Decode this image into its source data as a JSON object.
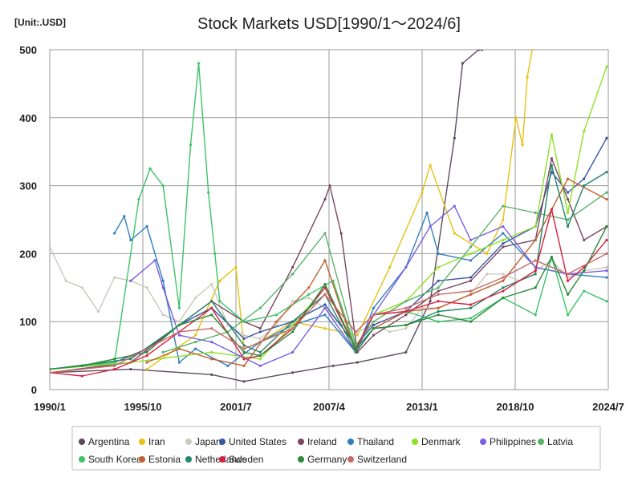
{
  "chart_data": {
    "type": "line",
    "title": "Stock Markets USD[1990/1～2024/6]",
    "unit_label": "[Unit:.USD]",
    "x_ticks": [
      "1990/1",
      "1995/10",
      "2001/7",
      "2007/4",
      "2013/1",
      "2018/10",
      "2024/7"
    ],
    "xlim": [
      1990.0,
      2024.5
    ],
    "ylim": [
      0,
      500
    ],
    "y_ticks": [
      0,
      100,
      200,
      300,
      400,
      500
    ],
    "grid": true,
    "legend_position": "bottom",
    "series": [
      {
        "name": "Argentina",
        "color": "#5b4a5e",
        "x": [
          1990,
          1995,
          2000,
          2002,
          2005,
          2007.5,
          2009,
          2012,
          2013.5,
          2015,
          2015.5,
          2016.5,
          2016.7
        ],
        "y": [
          25,
          30,
          22,
          12,
          25,
          35,
          40,
          55,
          130,
          370,
          480,
          500,
          500
        ]
      },
      {
        "name": "Iran",
        "color": "#e6c213",
        "x": [
          1996,
          1999,
          2000.5,
          2001.5,
          2002,
          2003,
          2005,
          2007,
          2009,
          2011,
          2013,
          2013.5,
          2015,
          2017,
          2018,
          2018.8,
          2019.2,
          2019.5,
          2019.8
        ],
        "y": [
          30,
          80,
          160,
          180,
          60,
          70,
          100,
          90,
          80,
          180,
          290,
          330,
          230,
          200,
          250,
          400,
          360,
          460,
          500
        ]
      },
      {
        "name": "Japan",
        "color": "#c9c9c0",
        "x": [
          1990,
          1991,
          1992,
          1993,
          1994,
          1995,
          1996,
          1997,
          1998,
          1999,
          2000,
          2001,
          2002,
          2003,
          2004,
          2005,
          2006,
          2007,
          2008,
          2009,
          2010,
          2011,
          2012,
          2013,
          2014,
          2015,
          2016,
          2017,
          2018,
          2019,
          2020,
          2021,
          2022,
          2023,
          2024.4
        ],
        "y": [
          210,
          160,
          150,
          115,
          165,
          160,
          150,
          110,
          100,
          135,
          155,
          95,
          80,
          75,
          95,
          130,
          135,
          120,
          95,
          85,
          95,
          85,
          90,
          120,
          120,
          130,
          140,
          170,
          170,
          160,
          175,
          190,
          165,
          175,
          180
        ]
      },
      {
        "name": "United States",
        "color": "#3a55a6",
        "x": [
          1990,
          1992,
          1994,
          1996,
          1998,
          2000,
          2002,
          2003,
          2005,
          2007,
          2008.9,
          2010,
          2012,
          2014,
          2016,
          2018,
          2020,
          2021,
          2022,
          2023,
          2024.4
        ],
        "y": [
          30,
          35,
          40,
          60,
          95,
          120,
          75,
          85,
          100,
          125,
          65,
          95,
          115,
          160,
          165,
          215,
          240,
          320,
          290,
          310,
          370
        ]
      },
      {
        "name": "Ireland",
        "color": "#7b4660",
        "x": [
          1990,
          1995,
          1998,
          2000,
          2002,
          2003,
          2005,
          2007,
          2007.3,
          2008,
          2009,
          2010,
          2012,
          2014,
          2016,
          2018,
          2020,
          2021,
          2022,
          2023,
          2024.4
        ],
        "y": [
          25,
          40,
          95,
          130,
          100,
          90,
          180,
          280,
          300,
          230,
          55,
          80,
          110,
          145,
          160,
          210,
          220,
          340,
          280,
          220,
          240
        ]
      },
      {
        "name": "Thailand",
        "color": "#2f7fc0",
        "x": [
          1994,
          1994.6,
          1995,
          1996,
          1997,
          1998,
          1999,
          2001,
          2003,
          2005,
          2007,
          2008.9,
          2010,
          2012,
          2013.3,
          2014,
          2016,
          2018,
          2020,
          2022,
          2024.4
        ],
        "y": [
          230,
          255,
          220,
          240,
          160,
          40,
          60,
          35,
          70,
          95,
          110,
          55,
          120,
          180,
          260,
          200,
          190,
          230,
          180,
          170,
          165
        ]
      },
      {
        "name": "Denmark",
        "color": "#8fe02a",
        "x": [
          1990,
          1995,
          2000,
          2003,
          2005,
          2007,
          2008.9,
          2010,
          2012,
          2014,
          2016,
          2018,
          2020,
          2021,
          2022,
          2023,
          2024.4
        ],
        "y": [
          30,
          40,
          55,
          45,
          95,
          150,
          60,
          110,
          130,
          180,
          200,
          220,
          240,
          375,
          260,
          380,
          475
        ]
      },
      {
        "name": "Philippines",
        "color": "#7b5fe0",
        "x": [
          1995,
          1996.5,
          1997,
          1998,
          2000,
          2003,
          2005,
          2007,
          2008.9,
          2010,
          2012,
          2013.5,
          2015,
          2016,
          2018,
          2020,
          2022,
          2024.4
        ],
        "y": [
          160,
          190,
          150,
          80,
          70,
          35,
          55,
          120,
          55,
          110,
          180,
          240,
          270,
          220,
          240,
          180,
          170,
          175
        ]
      },
      {
        "name": "Latvia",
        "color": "#5ab36a",
        "x": [
          1997,
          1999,
          2001,
          2003,
          2005,
          2007,
          2008.9,
          2010,
          2012,
          2014,
          2016,
          2018,
          2020,
          2022,
          2024.4
        ],
        "y": [
          55,
          70,
          85,
          120,
          170,
          230,
          65,
          100,
          130,
          150,
          210,
          270,
          260,
          250,
          290
        ]
      },
      {
        "name": "South Korea",
        "color": "#3cc468",
        "x": [
          1990,
          1994,
          1995.5,
          1996.2,
          1997,
          1998,
          1998.7,
          1999.2,
          1999.8,
          2000.2,
          2000.5,
          2002,
          2004,
          2006,
          2007.5,
          2008.9,
          2010,
          2012,
          2014,
          2016,
          2018,
          2020,
          2021,
          2022,
          2023,
          2024.4
        ],
        "y": [
          30,
          40,
          280,
          325,
          300,
          120,
          360,
          480,
          290,
          200,
          130,
          100,
          110,
          140,
          160,
          60,
          110,
          115,
          100,
          105,
          135,
          110,
          195,
          110,
          145,
          130
        ]
      },
      {
        "name": "Estonia",
        "color": "#c0612f",
        "x": [
          1996,
          1998,
          2000,
          2002,
          2004,
          2006,
          2007,
          2008.9,
          2010,
          2012,
          2014,
          2016,
          2018,
          2020,
          2022,
          2024.4
        ],
        "y": [
          40,
          60,
          45,
          35,
          100,
          150,
          190,
          55,
          90,
          115,
          120,
          140,
          160,
          220,
          310,
          280
        ]
      },
      {
        "name": "Netherlands",
        "color": "#24866a",
        "x": [
          1990,
          1995,
          1998,
          2000,
          2002,
          2003,
          2005,
          2007,
          2008.9,
          2010,
          2012,
          2014,
          2016,
          2018,
          2020,
          2021,
          2022,
          2023,
          2024.4
        ],
        "y": [
          30,
          45,
          95,
          130,
          65,
          55,
          100,
          140,
          55,
          90,
          95,
          115,
          120,
          150,
          170,
          330,
          240,
          300,
          320
        ]
      },
      {
        "name": "Sweden",
        "color": "#d9213f",
        "x": [
          1990,
          1992,
          1994,
          1996,
          1998,
          2000,
          2002,
          2003,
          2005,
          2007,
          2008.9,
          2010,
          2012,
          2014,
          2016,
          2018,
          2020,
          2021,
          2022,
          2023,
          2024.4
        ],
        "y": [
          25,
          20,
          30,
          50,
          85,
          120,
          45,
          50,
          90,
          150,
          60,
          110,
          115,
          130,
          125,
          145,
          175,
          265,
          160,
          180,
          220
        ]
      },
      {
        "name": "Germany",
        "color": "#2a8a3a",
        "x": [
          1990,
          1992,
          1994,
          1996,
          1998,
          2000,
          2002,
          2003,
          2005,
          2007,
          2008.9,
          2010,
          2012,
          2014,
          2016,
          2018,
          2020,
          2021,
          2022,
          2023,
          2024.4
        ],
        "y": [
          30,
          35,
          45,
          55,
          95,
          110,
          55,
          50,
          85,
          155,
          60,
          90,
          95,
          110,
          100,
          135,
          150,
          195,
          140,
          175,
          240
        ]
      },
      {
        "name": "Switzerland",
        "color": "#c86a6a",
        "x": [
          1990,
          1994,
          1998,
          2000,
          2002,
          2005,
          2007,
          2008.9,
          2010,
          2012,
          2014,
          2016,
          2018,
          2020,
          2022,
          2024.4
        ],
        "y": [
          25,
          35,
          85,
          90,
          60,
          90,
          140,
          85,
          110,
          120,
          140,
          145,
          165,
          190,
          170,
          200
        ]
      }
    ]
  }
}
